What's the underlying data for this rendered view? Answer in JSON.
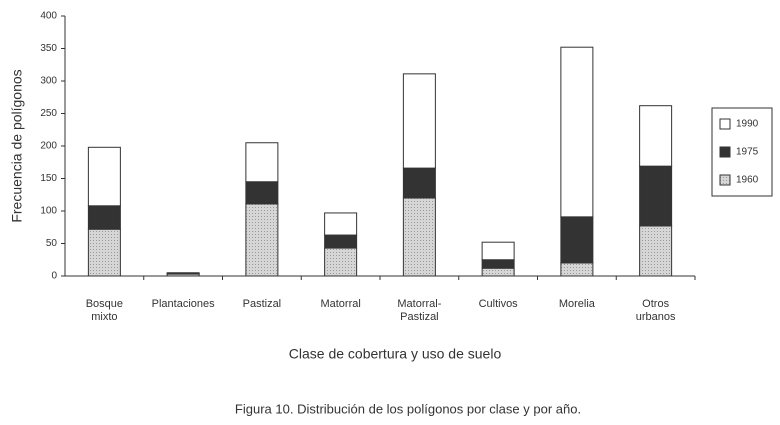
{
  "chart_data": {
    "type": "stacked_bar",
    "y_label": "Frecuencia de polígonos",
    "x_label": "Clase de cobertura y uso de suelo",
    "caption": "Figura 10. Distribución de los polígonos por clase y por año.",
    "categories": [
      "Bosque mixto",
      "Plantaciones",
      "Pastizal",
      "Matorral",
      "Matorral-Pastizal",
      "Cultivos",
      "Morelia",
      "Otros urbanos"
    ],
    "series": [
      {
        "name": "1960",
        "color": "#cfcfcf",
        "values": [
          72,
          3,
          111,
          43,
          120,
          12,
          20,
          77
        ]
      },
      {
        "name": "1975",
        "color": "#333333",
        "values": [
          36,
          1,
          34,
          20,
          46,
          13,
          71,
          92
        ]
      },
      {
        "name": "1990",
        "color": "#ffffff",
        "values": [
          90,
          1,
          60,
          34,
          145,
          27,
          261,
          93
        ]
      }
    ],
    "ylim": [
      0,
      400
    ],
    "yticks": [
      0,
      50,
      100,
      150,
      200,
      250,
      300,
      350,
      400
    ]
  }
}
